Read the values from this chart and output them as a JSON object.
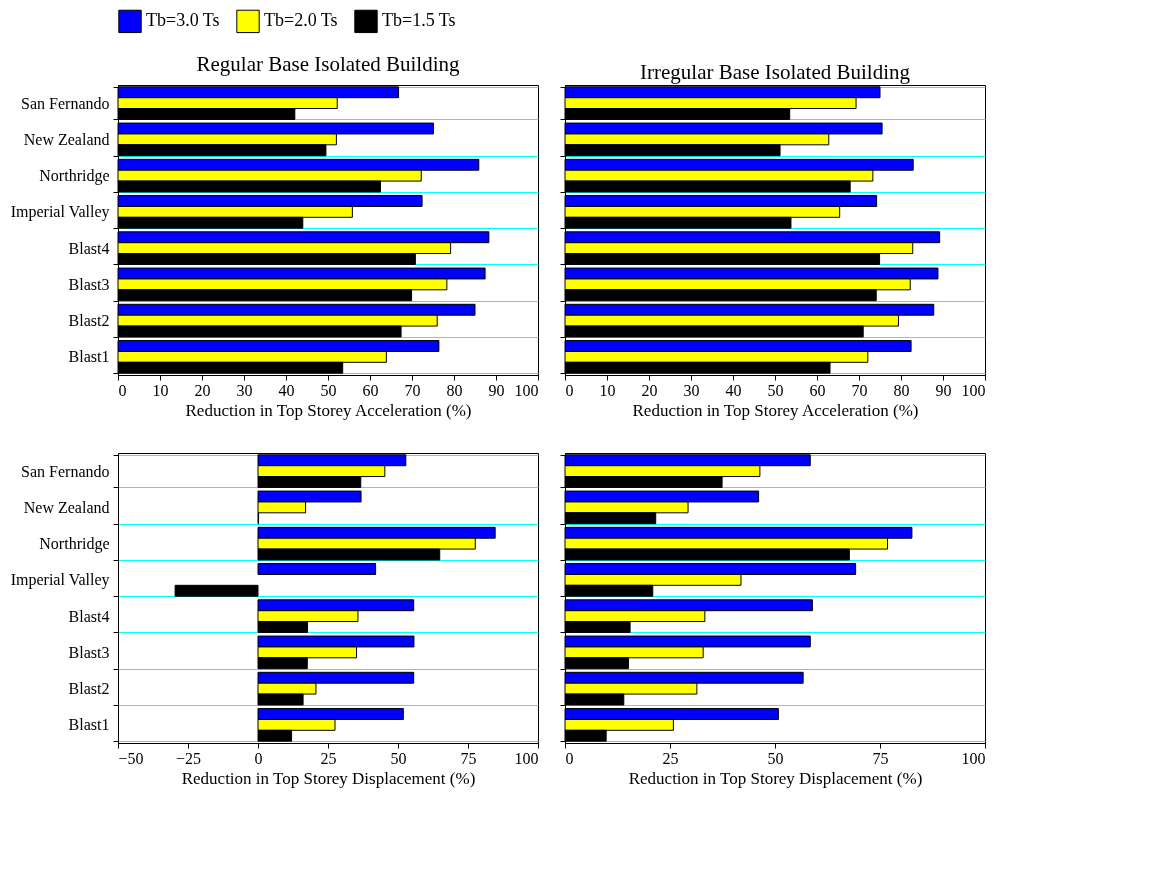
{
  "chart_data": [
    {
      "type": "bar",
      "orientation": "horizontal",
      "title": "Regular Base Isolated Building",
      "xlabel": "Reduction in Top Storey Acceleration (%)",
      "categories": [
        "San Fernando",
        "New Zealand",
        "Northridge",
        "Imperial Valley",
        "Blast4",
        "Blast3",
        "Blast2",
        "Blast1"
      ],
      "xlim": [
        0,
        100
      ],
      "xticks": [
        0,
        10,
        20,
        30,
        40,
        50,
        60,
        70,
        80,
        90,
        100
      ],
      "grid": "y",
      "legend": "top",
      "series": [
        {
          "name": "Tb=3.0 Ts",
          "color": "#0000ff",
          "values": [
            66.8,
            75.1,
            85.9,
            72.4,
            88.3,
            87.4,
            85.0,
            76.4
          ]
        },
        {
          "name": "Tb=2.0 Ts",
          "color": "#ffff00",
          "values": [
            52.2,
            52.0,
            72.2,
            55.8,
            79.2,
            78.3,
            76.0,
            63.9
          ]
        },
        {
          "name": "Tb=1.5 Ts",
          "color": "#000000",
          "values": [
            42.1,
            49.5,
            62.5,
            44.0,
            70.8,
            69.9,
            67.4,
            53.5
          ]
        }
      ]
    },
    {
      "type": "bar",
      "orientation": "horizontal",
      "title": "Irregular Base Isolated Building",
      "xlabel": "Reduction in Top Storey Acceleration (%)",
      "categories": [
        "San Fernando",
        "New Zealand",
        "Northridge",
        "Imperial Valley",
        "Blast4",
        "Blast3",
        "Blast2",
        "Blast1"
      ],
      "xlim": [
        0,
        100
      ],
      "xticks": [
        0,
        10,
        20,
        30,
        40,
        50,
        60,
        70,
        80,
        90,
        100
      ],
      "grid": "y",
      "tick_labels": "x",
      "series": [
        {
          "name": "Tb=3.0 Ts",
          "color": "#0000ff",
          "values": [
            75.0,
            75.5,
            82.9,
            74.2,
            89.2,
            88.8,
            87.8,
            82.4
          ]
        },
        {
          "name": "Tb=2.0 Ts",
          "color": "#ffff00",
          "values": [
            69.3,
            62.8,
            73.3,
            65.4,
            82.8,
            82.2,
            79.4,
            72.1
          ]
        },
        {
          "name": "Tb=1.5 Ts",
          "color": "#000000",
          "values": [
            53.5,
            51.2,
            67.9,
            53.8,
            74.9,
            74.1,
            71.0,
            63.1
          ]
        }
      ]
    },
    {
      "type": "bar",
      "orientation": "horizontal",
      "xlabel": "Reduction in Top Storey Displacement (%)",
      "categories": [
        "San Fernando",
        "New Zealand",
        "Northridge",
        "Imperial Valley",
        "Blast4",
        "Blast3",
        "Blast2",
        "Blast1"
      ],
      "xlim": [
        -50,
        100
      ],
      "xticks": [
        -50,
        -25,
        0,
        25,
        50,
        75,
        100
      ],
      "grid": "y",
      "series": [
        {
          "name": "Tb=3.0 Ts",
          "color": "#0000ff",
          "values": [
            52.8,
            36.8,
            84.7,
            42.0,
            55.6,
            55.7,
            55.6,
            51.9
          ]
        },
        {
          "name": "Tb=2.0 Ts",
          "color": "#ffff00",
          "values": [
            45.3,
            17.0,
            77.6,
            null,
            35.7,
            35.2,
            20.7,
            27.5
          ]
        },
        {
          "name": "Tb=1.5 Ts",
          "color": "#000000",
          "values": [
            36.7,
            0.2,
            64.9,
            -29.6,
            17.7,
            17.6,
            16.1,
            12.0
          ]
        }
      ]
    },
    {
      "type": "bar",
      "orientation": "horizontal",
      "xlabel": "Reduction in Top Storey Displacement (%)",
      "categories": [
        "San Fernando",
        "New Zealand",
        "Northridge",
        "Imperial Valley",
        "Blast4",
        "Blast3",
        "Blast2",
        "Blast1"
      ],
      "xlim": [
        0,
        100
      ],
      "xticks": [
        0,
        25,
        50,
        75,
        100
      ],
      "grid": "y",
      "tick_labels": "x",
      "series": [
        {
          "name": "Tb=3.0 Ts",
          "color": "#0000ff",
          "values": [
            58.4,
            46.1,
            82.6,
            69.2,
            58.9,
            58.4,
            56.7,
            50.8
          ]
        },
        {
          "name": "Tb=2.0 Ts",
          "color": "#ffff00",
          "values": [
            46.4,
            29.3,
            76.8,
            41.9,
            33.3,
            32.9,
            31.4,
            25.8
          ]
        },
        {
          "name": "Tb=1.5 Ts",
          "color": "#000000",
          "values": [
            37.4,
            21.6,
            67.7,
            20.9,
            15.5,
            15.1,
            14.0,
            9.8
          ]
        }
      ]
    }
  ]
}
